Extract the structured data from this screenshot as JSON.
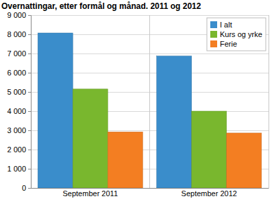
{
  "chart_data": {
    "type": "bar",
    "title": "Overnattingar, etter formål og månad. 2011 og 2012",
    "categories": [
      "September 2011",
      "September 2012"
    ],
    "series": [
      {
        "name": "I alt",
        "color": "#3a8dcb",
        "values": [
          8070,
          6870
        ]
      },
      {
        "name": "Kurs og yrke",
        "color": "#79b72e",
        "values": [
          5150,
          4000
        ]
      },
      {
        "name": "Ferie",
        "color": "#f37e22",
        "values": [
          2920,
          2860
        ]
      }
    ],
    "ylim": [
      0,
      9000
    ],
    "yticks": [
      0,
      {
        "value": 1000,
        "label": "1 000"
      },
      {
        "value": 2000,
        "label": "2 000"
      },
      {
        "value": 3000,
        "label": "3 000"
      },
      {
        "value": 4000,
        "label": "4 000"
      },
      {
        "value": 5000,
        "label": "5 000"
      },
      {
        "value": 6000,
        "label": "6 000"
      },
      {
        "value": 7000,
        "label": "7 000"
      },
      {
        "value": 8000,
        "label": "8 000"
      },
      {
        "value": 9000,
        "label": "9 000"
      }
    ],
    "grid": true,
    "legend": "upper right"
  }
}
